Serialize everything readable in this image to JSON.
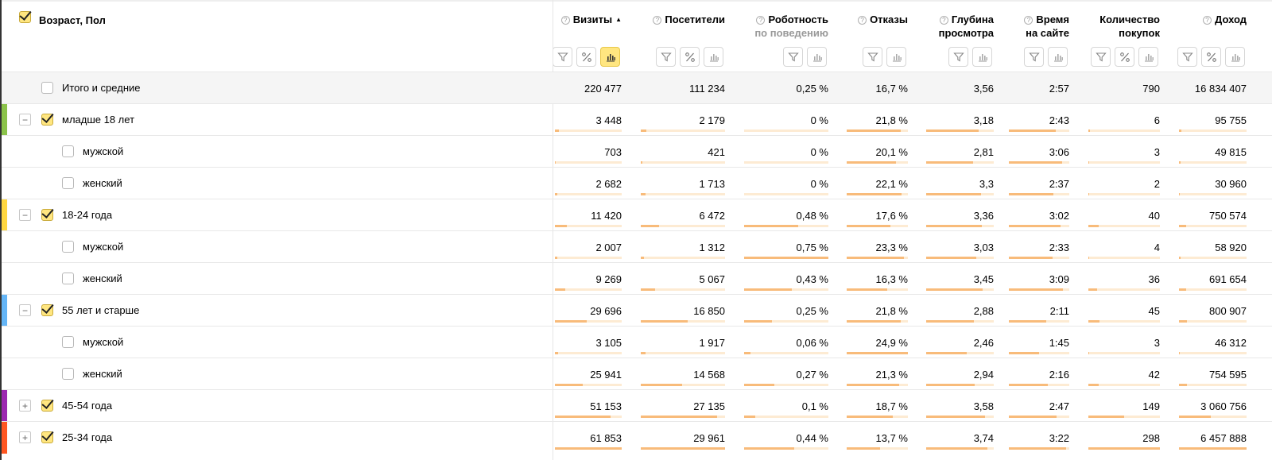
{
  "dimension_header": {
    "label": "Возраст, Пол",
    "checked": true
  },
  "columns": [
    {
      "key": "visits",
      "title": "Визиты",
      "sub": "",
      "sort": "▲",
      "buttons": [
        "filter-icon",
        "percent-icon",
        "bar-chart-icon"
      ],
      "active_chart": true,
      "has_q": true
    },
    {
      "key": "visitors",
      "title": "Посетители",
      "sub": "",
      "sort": "",
      "buttons": [
        "filter-icon",
        "percent-icon",
        "bar-chart-icon"
      ],
      "active_chart": false,
      "has_q": true
    },
    {
      "key": "robot",
      "title": "Роботность",
      "sub": "по поведению",
      "sort": "",
      "buttons": [
        "filter-icon",
        "bar-chart-icon"
      ],
      "active_chart": false,
      "has_q": true
    },
    {
      "key": "bounce",
      "title": "Отказы",
      "sub": "",
      "sort": "",
      "buttons": [
        "filter-icon",
        "bar-chart-icon"
      ],
      "active_chart": false,
      "has_q": true
    },
    {
      "key": "depth",
      "title": "Глубина",
      "sub": "просмотра",
      "sort": "",
      "buttons": [
        "filter-icon",
        "bar-chart-icon"
      ],
      "active_chart": false,
      "has_q": true
    },
    {
      "key": "time",
      "title": "Время",
      "sub": "на сайте",
      "sort": "",
      "buttons": [
        "filter-icon",
        "bar-chart-icon"
      ],
      "active_chart": false,
      "has_q": true
    },
    {
      "key": "purchases",
      "title": "Количество",
      "sub": "покупок",
      "sort": "",
      "buttons": [
        "filter-icon",
        "percent-icon",
        "bar-chart-icon"
      ],
      "active_chart": false,
      "has_q": false
    },
    {
      "key": "revenue",
      "title": "Доход",
      "sub": "",
      "sort": "",
      "buttons": [
        "filter-icon",
        "percent-icon",
        "bar-chart-icon"
      ],
      "active_chart": false,
      "has_q": true
    }
  ],
  "total": {
    "label": "Итого и средние",
    "values": [
      "220 477",
      "111 234",
      "0,25 %",
      "16,7 %",
      "3,56",
      "2:57",
      "790",
      "16 834 407"
    ]
  },
  "rows": [
    {
      "label": "младше 18 лет",
      "level": 0,
      "expander": "−",
      "checked": true,
      "marker_color": "#8bc34a",
      "values": [
        "3 448",
        "2 179",
        "0 %",
        "21,8 %",
        "3,18",
        "2:43",
        "6",
        "95 755"
      ],
      "fill": [
        0.06,
        0.07,
        0.0,
        0.88,
        0.78,
        0.77,
        0.02,
        0.04
      ]
    },
    {
      "label": "мужской",
      "level": 1,
      "expander": "",
      "checked": false,
      "marker_color": "",
      "values": [
        "703",
        "421",
        "0 %",
        "20,1 %",
        "2,81",
        "3:06",
        "3",
        "49 815"
      ],
      "fill": [
        0.01,
        0.02,
        0.0,
        0.81,
        0.69,
        0.88,
        0.01,
        0.02
      ]
    },
    {
      "label": "женский",
      "level": 1,
      "expander": "",
      "checked": false,
      "marker_color": "",
      "values": [
        "2 682",
        "1 713",
        "0 %",
        "22,1 %",
        "3,3",
        "2:37",
        "2",
        "30 960"
      ],
      "fill": [
        0.04,
        0.06,
        0.0,
        0.89,
        0.81,
        0.74,
        0.01,
        0.01
      ]
    },
    {
      "label": "18-24 года",
      "level": 0,
      "expander": "−",
      "checked": true,
      "marker_color": "#ffd740",
      "values": [
        "11 420",
        "6 472",
        "0,48 %",
        "17,6 %",
        "3,36",
        "3:02",
        "40",
        "750 574"
      ],
      "fill": [
        0.18,
        0.22,
        0.64,
        0.71,
        0.82,
        0.86,
        0.14,
        0.11
      ]
    },
    {
      "label": "мужской",
      "level": 1,
      "expander": "",
      "checked": false,
      "marker_color": "",
      "values": [
        "2 007",
        "1 312",
        "0,75 %",
        "23,3 %",
        "3,03",
        "2:33",
        "4",
        "58 920"
      ],
      "fill": [
        0.03,
        0.04,
        1.0,
        0.94,
        0.74,
        0.72,
        0.01,
        0.02
      ]
    },
    {
      "label": "женский",
      "level": 1,
      "expander": "",
      "checked": false,
      "marker_color": "",
      "values": [
        "9 269",
        "5 067",
        "0,43 %",
        "16,3 %",
        "3,45",
        "3:09",
        "36",
        "691 654"
      ],
      "fill": [
        0.15,
        0.17,
        0.57,
        0.66,
        0.84,
        0.89,
        0.12,
        0.11
      ]
    },
    {
      "label": "55 лет и старше",
      "level": 0,
      "expander": "−",
      "checked": true,
      "marker_color": "#64b5f6",
      "values": [
        "29 696",
        "16 850",
        "0,25 %",
        "21,8 %",
        "2,88",
        "2:11",
        "45",
        "800 907"
      ],
      "fill": [
        0.48,
        0.56,
        0.33,
        0.88,
        0.7,
        0.62,
        0.15,
        0.12
      ]
    },
    {
      "label": "мужской",
      "level": 1,
      "expander": "",
      "checked": false,
      "marker_color": "",
      "values": [
        "3 105",
        "1 917",
        "0,06 %",
        "24,9 %",
        "2,46",
        "1:45",
        "3",
        "46 312"
      ],
      "fill": [
        0.05,
        0.06,
        0.08,
        1.0,
        0.6,
        0.5,
        0.01,
        0.01
      ]
    },
    {
      "label": "женский",
      "level": 1,
      "expander": "",
      "checked": false,
      "marker_color": "",
      "values": [
        "25 941",
        "14 568",
        "0,27 %",
        "21,3 %",
        "2,94",
        "2:16",
        "42",
        "754 595"
      ],
      "fill": [
        0.42,
        0.49,
        0.36,
        0.86,
        0.72,
        0.64,
        0.14,
        0.12
      ]
    },
    {
      "label": "45-54 года",
      "level": 0,
      "expander": "+",
      "checked": true,
      "marker_color": "#9c27b0",
      "values": [
        "51 153",
        "27 135",
        "0,1 %",
        "18,7 %",
        "3,58",
        "2:47",
        "149",
        "3 060 756"
      ],
      "fill": [
        0.83,
        0.91,
        0.13,
        0.75,
        0.87,
        0.79,
        0.5,
        0.47
      ]
    },
    {
      "label": "25-34 года",
      "level": 0,
      "expander": "+",
      "checked": true,
      "marker_color": "#ff5722",
      "values": [
        "61 853",
        "29 961",
        "0,44 %",
        "13,7 %",
        "3,74",
        "3:22",
        "298",
        "6 457 888"
      ],
      "fill": [
        1.0,
        1.0,
        0.59,
        0.55,
        0.91,
        0.95,
        1.0,
        1.0
      ]
    }
  ]
}
